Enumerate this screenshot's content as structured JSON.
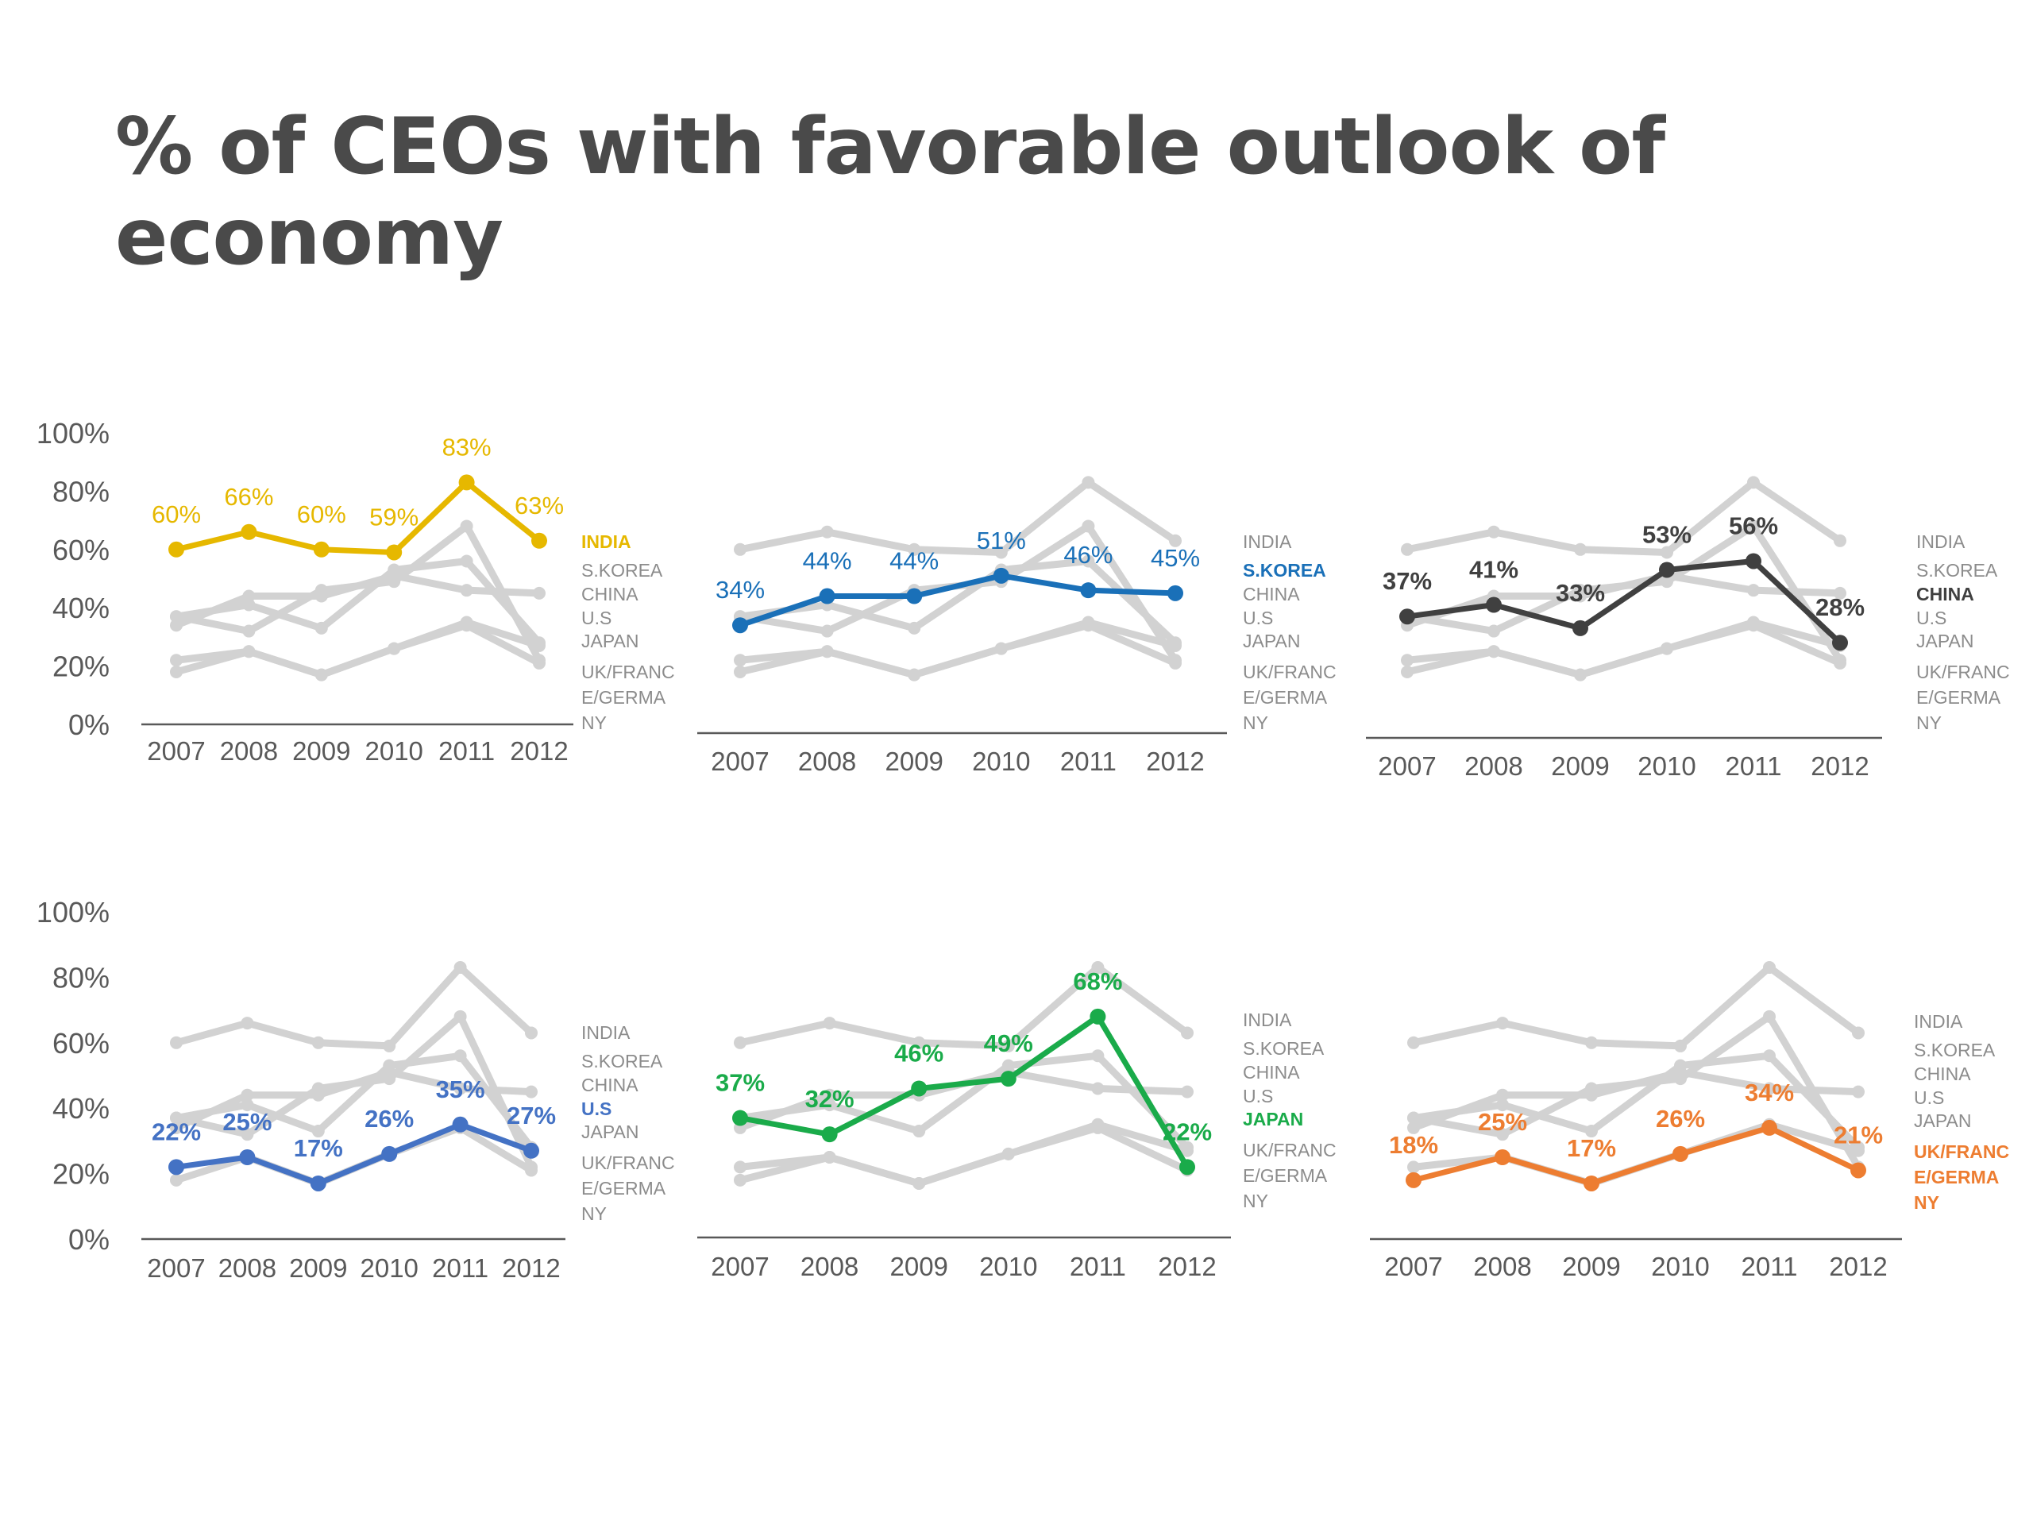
{
  "title": "% of CEOs with favorable outlook of economy",
  "colors": {
    "grey": "#d2d2d2",
    "axis": "#595959",
    "tick": "#595959",
    "legend_grey": "#8c8c8c"
  },
  "years": [
    "2007",
    "2008",
    "2009",
    "2010",
    "2011",
    "2012"
  ],
  "countries": [
    "INDIA",
    "S.KOREA",
    "CHINA",
    "U.S",
    "JAPAN",
    "UK/FRANCE/GERMANY"
  ],
  "legend_lines": [
    "INDIA",
    "S.KOREA",
    "CHINA",
    "U.S",
    "JAPAN",
    "UK/FRANC",
    "E/GERMA",
    "NY"
  ],
  "chart_data": [
    {
      "type": "line",
      "title": "INDIA",
      "highlight": "INDIA",
      "color": "#e6b800",
      "ylim": [
        0,
        100
      ],
      "yticks": [
        "0%",
        "20%",
        "40%",
        "60%",
        "80%",
        "100%"
      ],
      "show_y_axis": true,
      "categories": [
        "2007",
        "2008",
        "2009",
        "2010",
        "2011",
        "2012"
      ],
      "series": [
        {
          "name": "INDIA",
          "values": [
            60,
            66,
            60,
            59,
            83,
            63
          ]
        },
        {
          "name": "S.KOREA",
          "values": [
            34,
            44,
            44,
            51,
            46,
            45
          ]
        },
        {
          "name": "CHINA",
          "values": [
            37,
            41,
            33,
            53,
            56,
            28
          ]
        },
        {
          "name": "U.S",
          "values": [
            22,
            25,
            17,
            26,
            35,
            27
          ]
        },
        {
          "name": "JAPAN",
          "values": [
            37,
            32,
            46,
            49,
            68,
            22
          ]
        },
        {
          "name": "UK/FRANCE/GERMANY",
          "values": [
            18,
            25,
            17,
            26,
            34,
            21
          ]
        }
      ],
      "labels": [
        "60%",
        "66%",
        "60%",
        "59%",
        "83%",
        "63%"
      ]
    },
    {
      "type": "line",
      "title": "S.KOREA",
      "highlight": "S.KOREA",
      "color": "#1a70b8",
      "ylim": [
        0,
        100
      ],
      "show_y_axis": false,
      "categories": [
        "2007",
        "2008",
        "2009",
        "2010",
        "2011",
        "2012"
      ],
      "series": [
        {
          "name": "INDIA",
          "values": [
            60,
            66,
            60,
            59,
            83,
            63
          ]
        },
        {
          "name": "S.KOREA",
          "values": [
            34,
            44,
            44,
            51,
            46,
            45
          ]
        },
        {
          "name": "CHINA",
          "values": [
            37,
            41,
            33,
            53,
            56,
            28
          ]
        },
        {
          "name": "U.S",
          "values": [
            22,
            25,
            17,
            26,
            35,
            27
          ]
        },
        {
          "name": "JAPAN",
          "values": [
            37,
            32,
            46,
            49,
            68,
            22
          ]
        },
        {
          "name": "UK/FRANCE/GERMANY",
          "values": [
            18,
            25,
            17,
            26,
            34,
            21
          ]
        }
      ],
      "labels": [
        "34%",
        "44%",
        "44%",
        "51%",
        "46%",
        "45%"
      ]
    },
    {
      "type": "line",
      "title": "CHINA",
      "highlight": "CHINA",
      "color": "#404040",
      "ylim": [
        0,
        100
      ],
      "show_y_axis": false,
      "categories": [
        "2007",
        "2008",
        "2009",
        "2010",
        "2011",
        "2012"
      ],
      "series": [
        {
          "name": "INDIA",
          "values": [
            60,
            66,
            60,
            59,
            83,
            63
          ]
        },
        {
          "name": "S.KOREA",
          "values": [
            34,
            44,
            44,
            51,
            46,
            45
          ]
        },
        {
          "name": "CHINA",
          "values": [
            37,
            41,
            33,
            53,
            56,
            28
          ]
        },
        {
          "name": "U.S",
          "values": [
            22,
            25,
            17,
            26,
            35,
            27
          ]
        },
        {
          "name": "JAPAN",
          "values": [
            37,
            32,
            46,
            49,
            68,
            22
          ]
        },
        {
          "name": "UK/FRANCE/GERMANY",
          "values": [
            18,
            25,
            17,
            26,
            34,
            21
          ]
        }
      ],
      "labels": [
        "37%",
        "41%",
        "33%",
        "53%",
        "56%",
        "28%"
      ]
    },
    {
      "type": "line",
      "title": "U.S",
      "highlight": "U.S",
      "color": "#4472c4",
      "ylim": [
        0,
        100
      ],
      "yticks": [
        "0%",
        "20%",
        "40%",
        "60%",
        "80%",
        "100%"
      ],
      "show_y_axis": true,
      "categories": [
        "2007",
        "2008",
        "2009",
        "2010",
        "2011",
        "2012"
      ],
      "series": [
        {
          "name": "INDIA",
          "values": [
            60,
            66,
            60,
            59,
            83,
            63
          ]
        },
        {
          "name": "S.KOREA",
          "values": [
            34,
            44,
            44,
            51,
            46,
            45
          ]
        },
        {
          "name": "CHINA",
          "values": [
            37,
            41,
            33,
            53,
            56,
            28
          ]
        },
        {
          "name": "U.S",
          "values": [
            22,
            25,
            17,
            26,
            35,
            27
          ]
        },
        {
          "name": "JAPAN",
          "values": [
            37,
            32,
            46,
            49,
            68,
            22
          ]
        },
        {
          "name": "UK/FRANCE/GERMANY",
          "values": [
            18,
            25,
            17,
            26,
            34,
            21
          ]
        }
      ],
      "labels": [
        "22%",
        "25%",
        "17%",
        "26%",
        "35%",
        "27%"
      ]
    },
    {
      "type": "line",
      "title": "JAPAN",
      "highlight": "JAPAN",
      "color": "#1aab4a",
      "ylim": [
        0,
        100
      ],
      "show_y_axis": false,
      "categories": [
        "2007",
        "2008",
        "2009",
        "2010",
        "2011",
        "2012"
      ],
      "series": [
        {
          "name": "INDIA",
          "values": [
            60,
            66,
            60,
            59,
            83,
            63
          ]
        },
        {
          "name": "S.KOREA",
          "values": [
            34,
            44,
            44,
            51,
            46,
            45
          ]
        },
        {
          "name": "CHINA",
          "values": [
            37,
            41,
            33,
            53,
            56,
            28
          ]
        },
        {
          "name": "U.S",
          "values": [
            22,
            25,
            17,
            26,
            35,
            27
          ]
        },
        {
          "name": "JAPAN",
          "values": [
            37,
            32,
            46,
            49,
            68,
            22
          ]
        },
        {
          "name": "UK/FRANCE/GERMANY",
          "values": [
            18,
            25,
            17,
            26,
            34,
            21
          ]
        }
      ],
      "labels": [
        "37%",
        "32%",
        "46%",
        "49%",
        "68%",
        "22%"
      ]
    },
    {
      "type": "line",
      "title": "UK/FRANCE/GERMANY",
      "highlight": "UK/FRANCE/GERMANY",
      "color": "#ed7d31",
      "ylim": [
        0,
        100
      ],
      "show_y_axis": false,
      "categories": [
        "2007",
        "2008",
        "2009",
        "2010",
        "2011",
        "2012"
      ],
      "series": [
        {
          "name": "INDIA",
          "values": [
            60,
            66,
            60,
            59,
            83,
            63
          ]
        },
        {
          "name": "S.KOREA",
          "values": [
            34,
            44,
            44,
            51,
            46,
            45
          ]
        },
        {
          "name": "CHINA",
          "values": [
            37,
            41,
            33,
            53,
            56,
            28
          ]
        },
        {
          "name": "U.S",
          "values": [
            22,
            25,
            17,
            26,
            35,
            27
          ]
        },
        {
          "name": "JAPAN",
          "values": [
            37,
            32,
            46,
            49,
            68,
            22
          ]
        },
        {
          "name": "UK/FRANCE/GERMANY",
          "values": [
            18,
            25,
            17,
            26,
            34,
            21
          ]
        }
      ],
      "labels": [
        "18%",
        "25%",
        "17%",
        "26%",
        "34%",
        "21%"
      ]
    }
  ]
}
